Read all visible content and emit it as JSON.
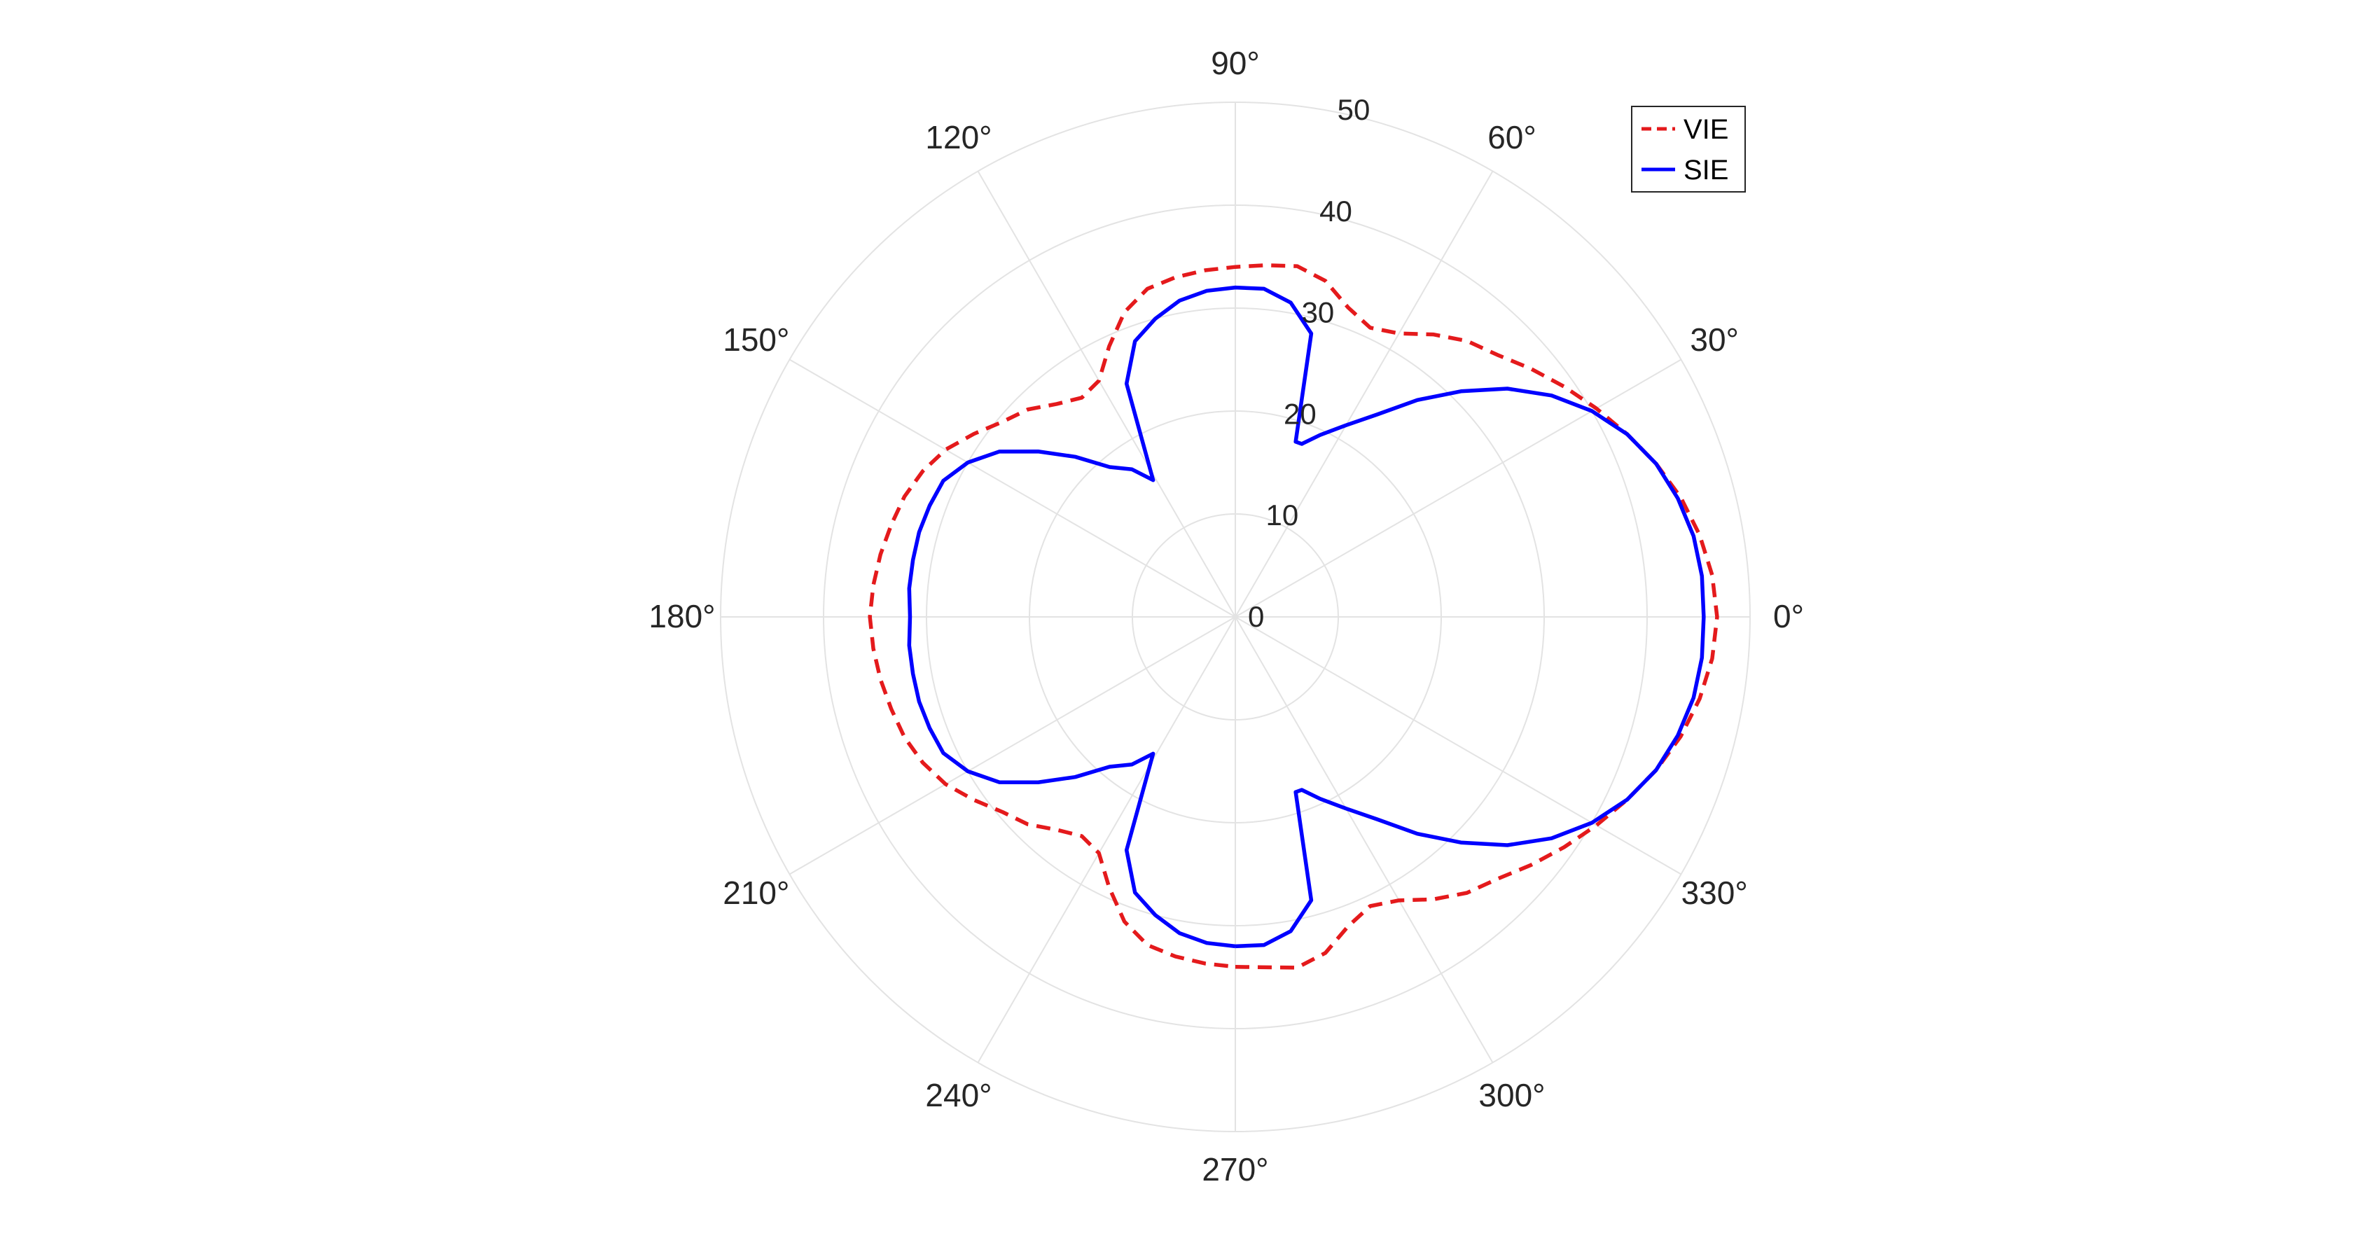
{
  "chart_data": {
    "type": "polar-line",
    "title": "",
    "r_lim": [
      0,
      50
    ],
    "r_ticks": [
      0,
      10,
      20,
      30,
      40,
      50
    ],
    "theta_ticks_deg": [
      0,
      30,
      60,
      90,
      120,
      150,
      180,
      210,
      240,
      270,
      300,
      330
    ],
    "theta_tick_labels": [
      "0°",
      "30°",
      "60°",
      "90°",
      "120°",
      "150°",
      "180°",
      "210°",
      "240°",
      "270°",
      "300°",
      "330°"
    ],
    "grid": true,
    "legend": {
      "placement": "top-right",
      "entries": [
        "VIE",
        "SIE"
      ]
    },
    "series": [
      {
        "name": "VIE",
        "color": "#e41a1c",
        "style": "dashed",
        "theta_deg": [
          -90,
          -80,
          -75,
          -70,
          -65,
          -60,
          -55,
          -50,
          -45,
          -40,
          -35,
          -30,
          -25,
          -20,
          -15,
          -10,
          -5,
          0,
          5,
          10,
          15,
          20,
          25,
          30,
          35,
          40,
          45,
          50,
          55,
          60,
          65,
          70,
          75,
          80,
          85,
          90,
          95,
          100,
          105,
          110,
          115,
          120,
          125,
          130,
          135,
          140,
          145,
          150,
          155,
          160,
          165,
          170,
          175,
          180,
          185,
          190,
          195,
          200,
          205,
          210,
          215,
          220,
          225,
          230,
          235,
          240,
          245,
          250,
          255,
          260,
          265,
          270
        ],
        "r": [
          34.0,
          34.6,
          33.8,
          32.0,
          31.0,
          31.8,
          33.5,
          35.0,
          36.0,
          37.5,
          39.0,
          40.5,
          42.0,
          43.5,
          44.8,
          45.8,
          46.5,
          46.8,
          46.5,
          45.8,
          44.8,
          43.5,
          42.0,
          40.5,
          39.0,
          37.5,
          36.0,
          35.0,
          33.5,
          31.8,
          31.0,
          32.0,
          33.8,
          34.6,
          34.3,
          34.0,
          33.8,
          33.5,
          33.0,
          31.5,
          29.0,
          26.5,
          26.0,
          27.0,
          28.5,
          29.5,
          31.0,
          32.5,
          33.5,
          34.2,
          34.6,
          35.0,
          35.3,
          35.5,
          35.3,
          35.0,
          34.6,
          34.2,
          33.5,
          32.5,
          31.0,
          29.5,
          28.5,
          27.0,
          26.0,
          26.5,
          29.0,
          31.5,
          33.0,
          33.5,
          33.8,
          34.0
        ]
      },
      {
        "name": "SIE",
        "color": "#0000ff",
        "style": "solid",
        "theta_deg": [
          -90,
          -85,
          -80,
          -75,
          -71,
          -69,
          -65,
          -60,
          -55,
          -50,
          -45,
          -40,
          -35,
          -30,
          -25,
          -20,
          -15,
          -10,
          -5,
          0,
          5,
          10,
          15,
          20,
          25,
          30,
          35,
          40,
          45,
          50,
          55,
          60,
          65,
          69,
          71,
          75,
          80,
          85,
          90,
          95,
          100,
          105,
          110,
          115,
          121,
          125,
          130,
          135,
          140,
          145,
          150,
          155,
          160,
          165,
          170,
          175,
          180,
          185,
          190,
          195,
          200,
          205,
          210,
          215,
          220,
          225,
          230,
          235,
          239,
          245,
          250,
          255,
          260,
          265,
          270
        ],
        "r": [
          32.0,
          32.0,
          31.0,
          28.5,
          18.0,
          18.0,
          19.5,
          21.5,
          24.0,
          27.5,
          31.0,
          34.5,
          37.5,
          40.0,
          42.0,
          43.5,
          44.5,
          45.2,
          45.5,
          45.5,
          45.5,
          45.2,
          44.5,
          43.5,
          42.0,
          40.0,
          37.5,
          34.5,
          31.0,
          27.5,
          24.0,
          21.5,
          19.5,
          18.0,
          18.0,
          28.5,
          31.0,
          32.0,
          32.0,
          31.8,
          31.2,
          30.0,
          28.5,
          25.0,
          15.5,
          17.5,
          19.0,
          22.0,
          25.0,
          28.0,
          30.0,
          31.3,
          31.6,
          31.8,
          31.8,
          31.8,
          31.6,
          31.8,
          31.8,
          31.8,
          31.6,
          31.3,
          30.0,
          28.0,
          25.0,
          22.0,
          19.0,
          17.5,
          15.5,
          25.0,
          28.5,
          30.0,
          31.2,
          31.8,
          32.0
        ]
      }
    ]
  }
}
